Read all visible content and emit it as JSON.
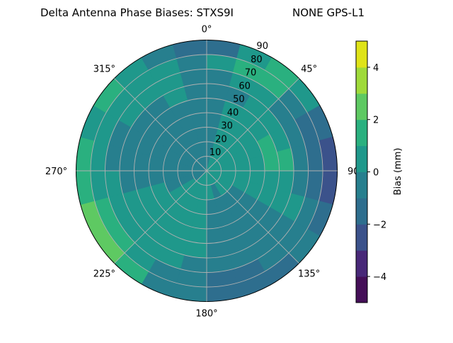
{
  "chart_data": {
    "type": "heatmap",
    "subtype": "polar-contour",
    "title_left": "Delta Antenna Phase Biases: STXS9I",
    "title_right": "NONE GPS-L1",
    "angular_ticks": [
      "0°",
      "45°",
      "90°",
      "135°",
      "180°",
      "225°",
      "270°",
      "315°"
    ],
    "radial_ticks": [
      "10",
      "20",
      "30",
      "40",
      "50",
      "60",
      "70",
      "80",
      "90"
    ],
    "radial_range": [
      0,
      90
    ],
    "grid": true,
    "colorbar": {
      "label": "Bias (mm)",
      "range": [
        -5,
        5
      ],
      "levels": [
        -5,
        -4,
        -3,
        -2,
        -1,
        0,
        1,
        2,
        3,
        4,
        5
      ],
      "tick_labels": [
        "−4",
        "−2",
        "0",
        "2",
        "4"
      ],
      "tick_values": [
        -4,
        -2,
        0,
        2,
        4
      ],
      "colors": [
        "#440f57",
        "#482878",
        "#3b528b",
        "#2e6e8e",
        "#277f8e",
        "#1f988b",
        "#2ab07f",
        "#5ec962",
        "#9fda3a",
        "#dfe318"
      ]
    },
    "azimuth_bin_deg": 15,
    "zenith_bin_deg": 10,
    "band_lower_bound_grid": [
      [
        -1,
        -1,
        -1,
        -1,
        -1,
        -1,
        -1,
        0,
        -2
      ],
      [
        0,
        0,
        0,
        0,
        0,
        -1,
        0,
        1,
        0
      ],
      [
        0,
        0,
        0,
        0,
        0,
        0,
        0,
        1,
        1
      ],
      [
        0,
        0,
        0,
        0,
        0,
        0,
        -1,
        -1,
        0
      ],
      [
        0,
        0,
        0,
        0,
        1,
        0,
        -1,
        -2,
        -2
      ],
      [
        0,
        0,
        0,
        0,
        1,
        1,
        -1,
        -2,
        -3
      ],
      [
        0,
        0,
        0,
        0,
        0,
        0,
        -1,
        -2,
        -3
      ],
      [
        0,
        0,
        0,
        0,
        0,
        0,
        0,
        -1,
        -2
      ],
      [
        0,
        0,
        -1,
        -1,
        -1,
        -1,
        -1,
        -1,
        -1
      ],
      [
        0,
        0,
        -1,
        -1,
        -1,
        -1,
        -1,
        -1,
        -2
      ],
      [
        0,
        -1,
        -1,
        -1,
        -1,
        -1,
        -1,
        -2,
        -2
      ],
      [
        0,
        0,
        -1,
        -1,
        -1,
        -1,
        -1,
        -2,
        -2
      ],
      [
        0,
        0,
        0,
        0,
        0,
        0,
        -1,
        -1,
        -1
      ],
      [
        0,
        0,
        0,
        0,
        0,
        0,
        0,
        -1,
        -1
      ],
      [
        0,
        0,
        0,
        0,
        0,
        0,
        0,
        0,
        1
      ],
      [
        -1,
        0,
        0,
        0,
        0,
        0,
        0,
        1,
        2
      ],
      [
        -1,
        -1,
        -1,
        0,
        0,
        0,
        0,
        1,
        2
      ],
      [
        -1,
        -1,
        -1,
        -1,
        -1,
        -1,
        0,
        0,
        1
      ],
      [
        -1,
        -1,
        -1,
        -1,
        -1,
        -1,
        -1,
        0,
        1
      ],
      [
        -1,
        -1,
        -1,
        -1,
        -1,
        -1,
        -1,
        0,
        0
      ],
      [
        -1,
        -1,
        -1,
        -1,
        -1,
        -1,
        0,
        0,
        1
      ],
      [
        -1,
        -1,
        -1,
        -1,
        -1,
        -1,
        0,
        0,
        0
      ],
      [
        -1,
        -1,
        -1,
        -1,
        -1,
        0,
        0,
        0,
        -1
      ],
      [
        -1,
        -1,
        -1,
        -1,
        -1,
        -1,
        -1,
        -1,
        -2
      ]
    ]
  }
}
